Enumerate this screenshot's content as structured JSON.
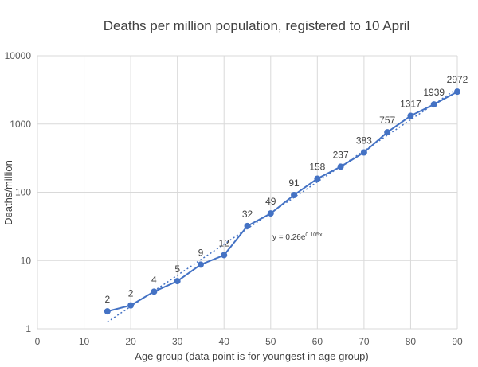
{
  "chart_data": {
    "type": "line",
    "title": "Deaths per million population, registered to 10 April",
    "xlabel": "Age group (data point is for youngest in age group)",
    "ylabel": "Deaths/million",
    "xlim": [
      0,
      90
    ],
    "ylim": [
      1,
      10000
    ],
    "yscale": "log",
    "grid": "horizontal",
    "x_ticks": [
      "0",
      "10",
      "20",
      "30",
      "40",
      "50",
      "60",
      "70",
      "80",
      "90"
    ],
    "y_ticks": [
      "1",
      "10",
      "100",
      "1000",
      "10000"
    ],
    "series": [
      {
        "x": [
          15,
          20,
          25,
          30,
          35,
          40,
          45,
          50,
          55,
          60,
          65,
          70,
          75,
          80,
          85,
          90
        ],
        "values": [
          1.8,
          2.2,
          3.5,
          5,
          8.7,
          12,
          32,
          49,
          91,
          158,
          237,
          383,
          757,
          1317,
          1939,
          2972
        ],
        "labels": [
          "2",
          "2",
          "4",
          "5",
          "9",
          "12",
          "32",
          "49",
          "91",
          "158",
          "237",
          "383",
          "757",
          "1317",
          "1939",
          "2972"
        ],
        "color": "#4472c4"
      }
    ],
    "trendline": {
      "type": "exponential",
      "equation_base": "y = 0.26e",
      "equation_exp": "0.105x",
      "a": 0.26,
      "b": 0.105,
      "x_range": [
        15,
        90
      ],
      "style": "dotted",
      "color": "#4472c4"
    }
  }
}
